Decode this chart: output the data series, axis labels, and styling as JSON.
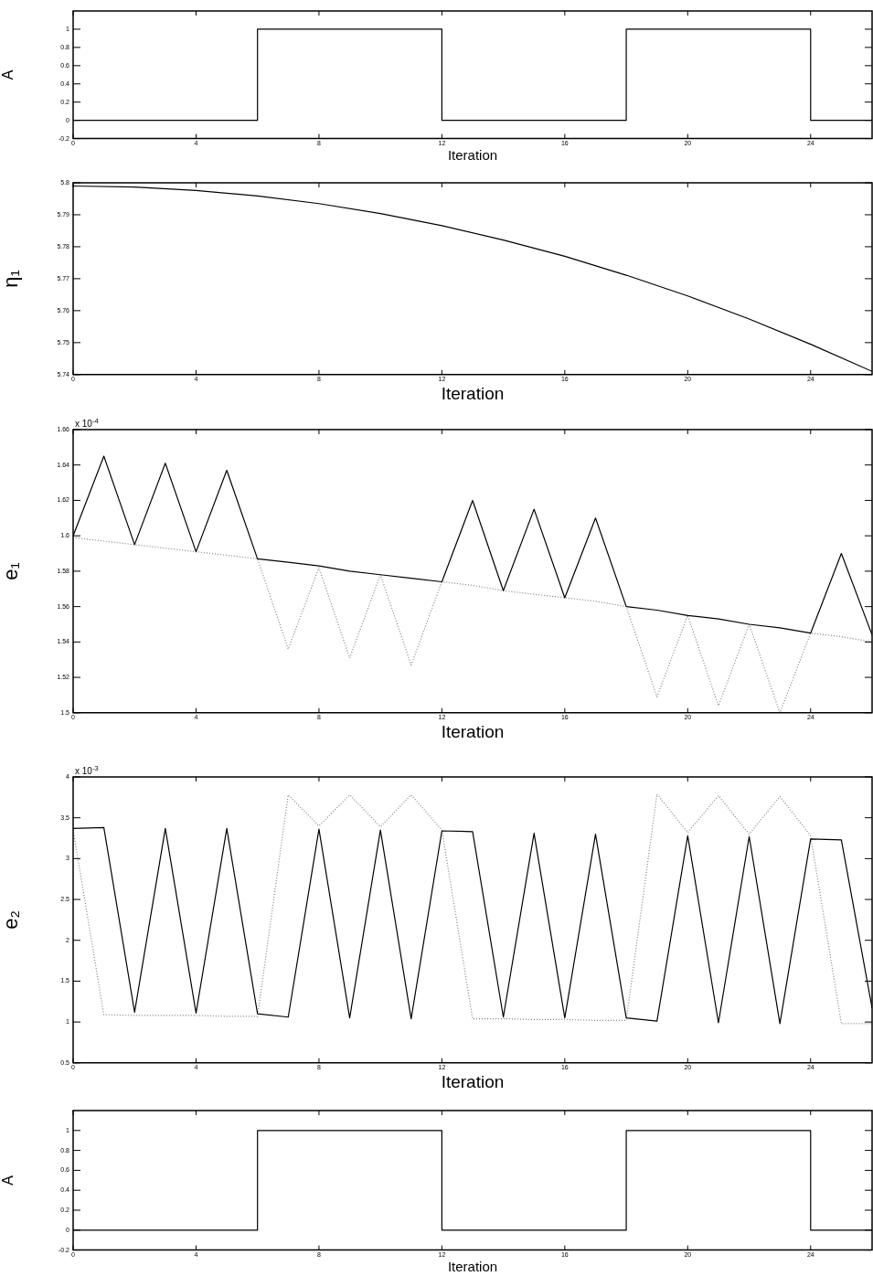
{
  "chart_data": [
    {
      "type": "step",
      "xlabel": "Iteration",
      "ylabel": "A",
      "xlim": [
        0,
        26
      ],
      "xticks": [
        0,
        4,
        8,
        12,
        16,
        20,
        24
      ],
      "ylim": [
        -0.2,
        1.2
      ],
      "yticks": [
        -0.2,
        0,
        0.2,
        0.4,
        0.6,
        0.8,
        1
      ],
      "series": [
        {
          "color": "#000000",
          "x": [
            0,
            6,
            12,
            18,
            24,
            26
          ],
          "values": [
            0,
            1,
            0,
            1,
            0,
            0
          ]
        }
      ]
    },
    {
      "type": "line",
      "xlabel": "Iteration",
      "ylabel": "η₁",
      "xlim": [
        0,
        26
      ],
      "xticks": [
        0,
        4,
        8,
        12,
        16,
        20,
        24
      ],
      "ylim": [
        5.74,
        5.8
      ],
      "yticks": [
        5.74,
        5.75,
        5.76,
        5.77,
        5.78,
        5.79,
        5.8
      ],
      "series": [
        {
          "color": "#000000",
          "x": [
            0,
            2,
            4,
            6,
            8,
            10,
            12,
            14,
            16,
            18,
            20,
            22,
            24,
            26
          ],
          "values": [
            5.799,
            5.7987,
            5.7976,
            5.7959,
            5.7935,
            5.7904,
            5.7866,
            5.7821,
            5.777,
            5.7711,
            5.7646,
            5.7574,
            5.7495,
            5.741
          ]
        }
      ]
    },
    {
      "type": "line",
      "xlabel": "Iteration",
      "ylabel": "e₁",
      "annotations": [
        "x 10$^{-4}$"
      ],
      "xlim": [
        0,
        26
      ],
      "xticks": [
        0,
        4,
        8,
        12,
        16,
        20,
        24
      ],
      "ylim": [
        1.5,
        1.66
      ],
      "yticks": [
        1.5,
        1.52,
        1.54,
        1.56,
        1.58,
        1.6,
        1.62,
        1.64,
        1.66
      ],
      "x": [
        0,
        1,
        2,
        3,
        4,
        5,
        6,
        7,
        8,
        9,
        10,
        11,
        12,
        13,
        14,
        15,
        16,
        17,
        18,
        19,
        20,
        21,
        22,
        23,
        24,
        25,
        26
      ],
      "series": [
        {
          "color": "#000000",
          "line_style": "solid",
          "values": [
            1.6,
            1.645,
            1.595,
            1.641,
            1.591,
            1.637,
            1.587,
            1.585,
            1.583,
            1.58,
            1.578,
            1.576,
            1.574,
            1.62,
            1.569,
            1.615,
            1.565,
            1.61,
            1.56,
            1.558,
            1.555,
            1.553,
            1.55,
            1.548,
            1.545,
            1.59,
            1.544
          ]
        },
        {
          "color": "#808080",
          "line_style": "dotted",
          "values": [
            1.599,
            1.597,
            1.595,
            1.593,
            1.591,
            1.589,
            1.587,
            1.536,
            1.582,
            1.531,
            1.578,
            1.527,
            1.574,
            1.572,
            1.569,
            1.567,
            1.565,
            1.563,
            1.56,
            1.509,
            1.555,
            1.504,
            1.55,
            1.5,
            1.545,
            1.543,
            1.54
          ]
        }
      ]
    },
    {
      "type": "line",
      "xlabel": "Iteration",
      "ylabel": "e₂",
      "annotations": [
        "x 10$^{-3}$"
      ],
      "xlim": [
        0,
        26
      ],
      "xticks": [
        0,
        4,
        8,
        12,
        16,
        20,
        24
      ],
      "ylim": [
        0.5,
        4
      ],
      "yticks": [
        0.5,
        1,
        1.5,
        2,
        2.5,
        3,
        3.5,
        4
      ],
      "x": [
        0,
        1,
        2,
        3,
        4,
        5,
        6,
        7,
        8,
        9,
        10,
        11,
        12,
        13,
        14,
        15,
        16,
        17,
        18,
        19,
        20,
        21,
        22,
        23,
        24,
        25,
        26
      ],
      "series": [
        {
          "color": "#000000",
          "line_style": "solid",
          "values": [
            3.37,
            3.38,
            1.12,
            3.37,
            1.11,
            3.37,
            1.1,
            1.06,
            3.36,
            1.05,
            3.35,
            1.04,
            3.34,
            3.33,
            1.06,
            3.31,
            1.05,
            3.3,
            1.05,
            1.01,
            3.28,
            0.99,
            3.27,
            0.98,
            3.24,
            3.23,
            1.17
          ]
        },
        {
          "color": "#808080",
          "line_style": "dotted",
          "values": [
            3.35,
            1.09,
            1.08,
            1.08,
            1.08,
            1.07,
            1.07,
            3.78,
            3.4,
            3.78,
            3.39,
            3.78,
            3.35,
            1.04,
            1.04,
            1.03,
            1.03,
            1.02,
            1.02,
            3.79,
            3.32,
            3.77,
            3.3,
            3.76,
            3.28,
            0.98,
            0.98
          ]
        }
      ]
    },
    {
      "type": "step",
      "xlabel": "Iteration",
      "ylabel": "A",
      "xlim": [
        0,
        26
      ],
      "xticks": [
        0,
        4,
        8,
        12,
        16,
        20,
        24
      ],
      "ylim": [
        -0.2,
        1.2
      ],
      "yticks": [
        -0.2,
        0,
        0.2,
        0.4,
        0.6,
        0.8,
        1
      ],
      "series": [
        {
          "color": "#000000",
          "x": [
            0,
            6,
            12,
            18,
            24,
            26
          ],
          "values": [
            0,
            1,
            0,
            1,
            0,
            0
          ]
        }
      ]
    }
  ]
}
